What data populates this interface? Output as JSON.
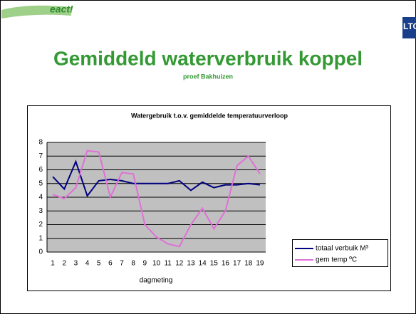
{
  "slide": {
    "heading": "Gemiddeld waterverbruik  koppel",
    "subheading": "proef Bakhuizen",
    "logo_left": "eact!",
    "logo_right": "LTO"
  },
  "chart_data": {
    "type": "line",
    "title": "Watergebruik t.o.v. gemiddelde temperatuurverloop",
    "x_label": "dagmeting",
    "categories": [
      "1",
      "2",
      "3",
      "4",
      "5",
      "6",
      "7",
      "8",
      "9",
      "10",
      "11",
      "12",
      "13",
      "14",
      "15",
      "16",
      "17",
      "18",
      "19"
    ],
    "series": [
      {
        "name": "totaal verbuik M³",
        "color": "#000080",
        "values": [
          5.5,
          4.6,
          6.6,
          4.1,
          5.2,
          5.3,
          5.2,
          5.0,
          5.0,
          5.0,
          5.0,
          5.2,
          4.5,
          5.1,
          4.7,
          4.9,
          4.9,
          5.0,
          4.9
        ]
      },
      {
        "name": "gem temp ºC",
        "color": "#e070d8",
        "values": [
          4.2,
          3.9,
          4.7,
          7.4,
          7.3,
          4.0,
          5.8,
          5.7,
          2.0,
          1.1,
          0.6,
          0.4,
          2.0,
          3.2,
          1.7,
          3.0,
          6.3,
          7.0,
          5.7
        ]
      }
    ],
    "ylim": [
      0,
      8
    ],
    "yticks": [
      0,
      1,
      2,
      3,
      4,
      5,
      6,
      7,
      8
    ],
    "grid": true,
    "legend": "right"
  }
}
